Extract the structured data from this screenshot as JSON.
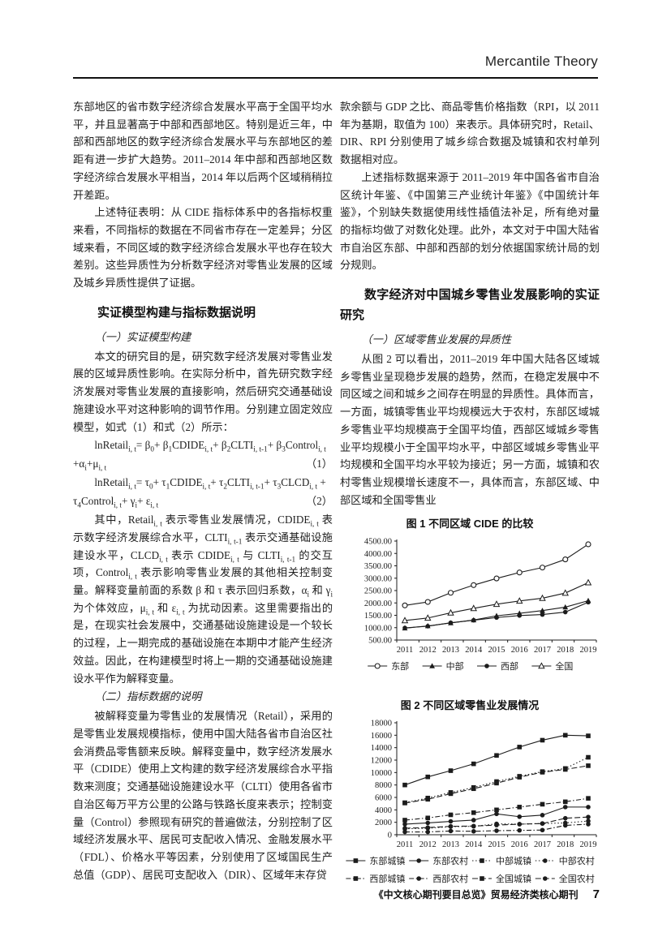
{
  "header": {
    "journal": "Mercantile Theory"
  },
  "footer": {
    "note": "《中文核心期刊要目总览》贸易经济类核心期刊",
    "page_number": "7"
  },
  "left_column": {
    "p1": "东部地区的省市数字经济综合发展水平高于全国平均水平，并且显著高于中部和西部地区。特别是近三年，中部和西部地区的数字经济综合发展水平与东部地区的差距有进一步扩大趋势。2011–2014 年中部和西部地区数字经济综合发展水平相当，2014 年以后两个区域稍稍拉开差距。",
    "p2": "上述特征表明：从 CIDE 指标体系中的各指标权重来看，不同指标的数据在不同省市存在一定差异；分区域来看，不同区域的数字经济综合发展水平也存在较大差别。这些异质性为分析数字经济对零售业发展的区域及城乡异质性提供了证据。",
    "section1_title": "实证模型构建与指标数据说明",
    "sub1": "（一）实证模型构建",
    "p3": "本文的研究目的是，研究数字经济发展对零售业发展的区域异质性影响。在实际分析中，首先研究数字经济发展对零售业发展的直接影响，然后研究交通基础设施建设水平对这种影响的调节作用。分别建立固定效应模型，如式（1）和式（2）所示：",
    "formula1_html": "lnRetail<sub>i, t</sub>= β<sub>0</sub>+ β<sub>1</sub>CDIDE<sub>i, t</sub>+ β<sub>2</sub>CLTI<sub>i, t-1</sub>+ β<sub>3</sub>Control<sub>i, t</sub> +α<sub>i</sub>+μ<sub>i, t</sub>",
    "formula1_number": "（1）",
    "formula2_html": "lnRetail<sub>i, t</sub>= τ<sub>0</sub>+ τ<sub>1</sub>CDIDE<sub>i, t</sub>+ τ<sub>2</sub>CLTI<sub>i, t-1</sub>+ τ<sub>3</sub>CLCD<sub>i, t</sub> + τ<sub>4</sub>Control<sub>i, t</sub>+ γ<sub>i</sub>+ ε<sub>i, t</sub>",
    "formula2_number": "（2）",
    "p4_html": "其中，Retail<sub>i, t</sub> 表示零售业发展情况，CDIDE<sub>i, t</sub> 表示数字经济发展综合水平，CLTI<sub>i, t-1</sub> 表示交通基础设施建设水平，CLCD<sub>i, t</sub> 表示 CDIDE<sub>i, t</sub> 与 CLTI<sub>i, t-1</sub> 的交互项，Control<sub>i, t</sub> 表示影响零售业发展的其他相关控制变量。解释变量前面的系数 β 和 τ 表示回归系数，α<sub>i</sub> 和 γ<sub>i</sub> 为个体效应，μ<sub>i, t</sub> 和 ε<sub>i, t</sub> 为扰动因素。这里需要指出的是，在现实社会发展中，交通基础设施建设是一个较长的过程，上一期完成的基础设施在本期中才能产生经济效益。因此，在构建模型时将上一期的交通基础设施建设水平作为解释变量。",
    "sub2": "（二）指标数据的说明",
    "p5": "被解释变量为零售业的发展情况（Retail），采用的是零售业发展规模指标，使用中国大陆各省市自治区社会消费品零售额来反映。解释变量中，数字经济发展水平（CDIDE）使用上文构建的数字经济发展综合水平指数来测度；交通基础设施建设水平（CLTI）使用各省市自治区每万平方公里的公路与铁路长度来表示；控制变量（Control）参照现有研究的普遍做法，分别控制了区域经济发展水平、居民可支配收入情况、金融发展水平（FDL）、价格水平等因素，分别使用了区域国民生产总值（GDP）、居民可支配收入（DIR）、区域年末存贷"
  },
  "right_column": {
    "p6": "款余额与 GDP 之比、商品零售价格指数（RPI，以 2011 年为基期，取值为 100）来表示。具体研究时，Retail、DIR、RPI 分别使用了城乡综合数据及城镇和农村单列数据相对应。",
    "p7": "上述指标数据来源于 2011–2019 年中国各省市自治区统计年鉴、《中国第三产业统计年鉴》《中国统计年鉴》，个别缺失数据使用线性插值法补足，所有绝对量的指标均做了对数化处理。此外，本文对于中国大陆省市自治区东部、中部和西部的划分依据国家统计局的划分规则。",
    "section2_title": "数字经济对中国城乡零售业发展影响的实证研究",
    "sub3": "（一）区域零售业发展的异质性",
    "p8": "从图 2 可以看出，2011–2019 年中国大陆各区域城乡零售业呈现稳步发展的趋势，然而，在稳定发展中不同区域之间和城乡之间存在明显的异质性。具体而言，一方面，城镇零售业平均规模远大于农村，东部区域城乡零售业平均规模高于全国平均值，西部区域城乡零售业平均规模小于全国平均水平，中部区域城乡零售业平均规模和全国平均水平较为接近；另一方面，城镇和农村零售业规模增长速度不一，具体而言，东部区域、中部区域和全国零售业"
  },
  "chart_data": [
    {
      "type": "line",
      "title": "图 1 不同区域 CIDE 的比较",
      "x": [
        "2011",
        "2012",
        "2013",
        "2014",
        "2015",
        "2016",
        "2017",
        "2018",
        "2019"
      ],
      "ylim": [
        500,
        4500
      ],
      "ystep": 500,
      "ydecimals": 2,
      "grid": false,
      "legend_position": "bottom",
      "series": [
        {
          "name": "东部",
          "marker": "circle-open",
          "dash": "solid",
          "values": [
            1900,
            2040,
            2410,
            2720,
            2990,
            3230,
            3430,
            3760,
            4370
          ]
        },
        {
          "name": "中部",
          "marker": "triangle-filled",
          "dash": "solid",
          "values": [
            980,
            1070,
            1190,
            1310,
            1480,
            1580,
            1690,
            1830,
            2090
          ]
        },
        {
          "name": "西部",
          "marker": "circle-filled",
          "dash": "solid",
          "values": [
            990,
            1060,
            1200,
            1300,
            1410,
            1490,
            1530,
            1630,
            2030
          ]
        },
        {
          "name": "全国",
          "marker": "triangle-open",
          "dash": "solid",
          "values": [
            1290,
            1390,
            1600,
            1780,
            1950,
            2080,
            2190,
            2400,
            2820
          ]
        }
      ]
    },
    {
      "type": "line",
      "title": "图 2 不同区域零售业发展情况",
      "x": [
        "2011",
        "2012",
        "2013",
        "2014",
        "2015",
        "2016",
        "2017",
        "2018",
        "2019"
      ],
      "ylim": [
        0,
        18000
      ],
      "ystep": 2000,
      "ydecimals": 0,
      "grid": false,
      "legend_position": "bottom",
      "series": [
        {
          "name": "东部城镇",
          "marker": "square-filled",
          "dash": "solid",
          "values": [
            8000,
            9300,
            10300,
            11400,
            12750,
            14100,
            15200,
            16000,
            15900
          ]
        },
        {
          "name": "东部农村",
          "marker": "circle-filled",
          "dash": "solid",
          "values": [
            1700,
            1900,
            2150,
            2350,
            3350,
            2900,
            3150,
            4450,
            4450
          ]
        },
        {
          "name": "中部城镇",
          "marker": "square-filled",
          "dash": "dotted",
          "values": [
            5150,
            5900,
            6800,
            7600,
            8550,
            9400,
            10150,
            10650,
            12450
          ]
        },
        {
          "name": "中部农村",
          "marker": "circle-filled",
          "dash": "dotted",
          "values": [
            950,
            1050,
            1300,
            1350,
            1750,
            1700,
            1800,
            1900,
            2200
          ]
        },
        {
          "name": "西部城镇",
          "marker": "square-filled",
          "dash": "dash-dot",
          "values": [
            2350,
            2700,
            3200,
            3550,
            4000,
            4450,
            4900,
            5300,
            5850
          ]
        },
        {
          "name": "西部农村",
          "marker": "circle-filled",
          "dash": "dash-dot",
          "values": [
            450,
            450,
            600,
            550,
            650,
            700,
            750,
            1500,
            1700
          ]
        },
        {
          "name": "全国城镇",
          "marker": "square-filled",
          "dash": "dashed",
          "values": [
            5100,
            5700,
            6600,
            7400,
            8300,
            9250,
            10050,
            10500,
            11100
          ]
        },
        {
          "name": "全国农村",
          "marker": "circle-filled",
          "dash": "dashed",
          "values": [
            1050,
            1150,
            1350,
            1400,
            1550,
            1700,
            1800,
            2650,
            2850
          ]
        }
      ]
    }
  ]
}
